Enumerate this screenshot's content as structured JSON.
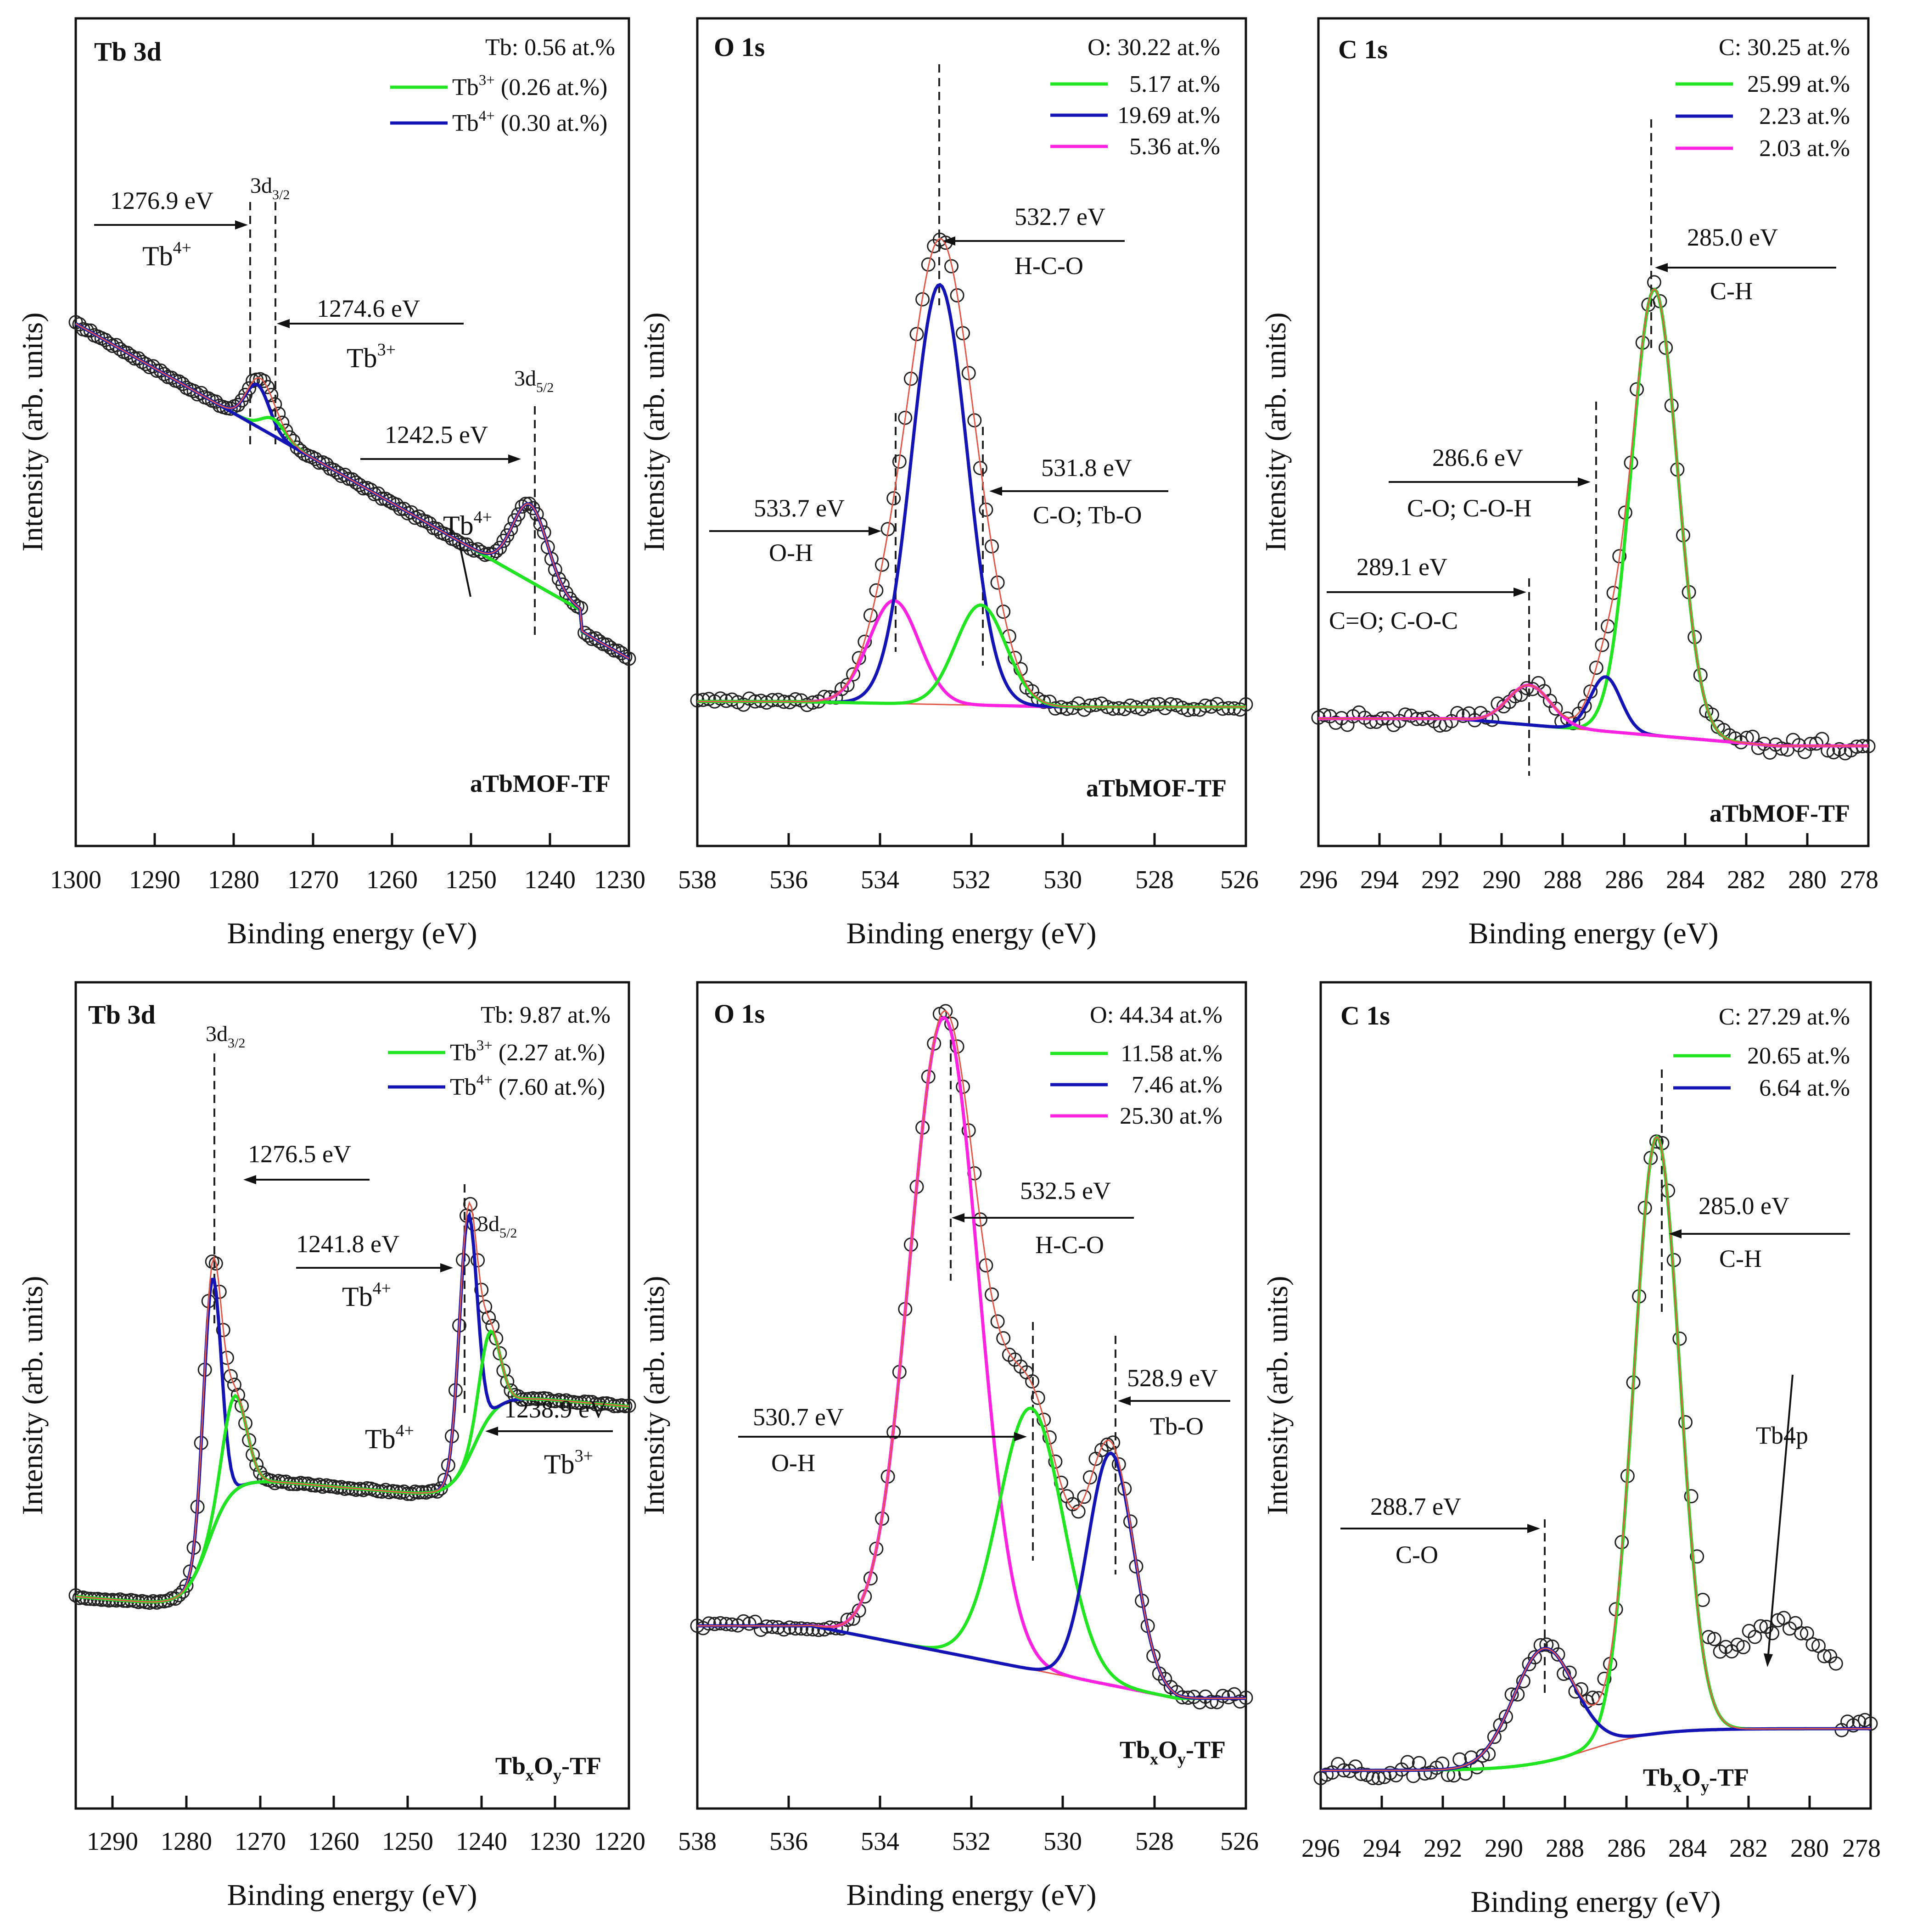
{
  "figure": {
    "colors": {
      "green": "#22e522",
      "blue": "#1414b4",
      "magenta": "#ff22e0",
      "navy": "#101060",
      "raw": "#222222",
      "envelope": "#e0584a"
    }
  },
  "chart_data": [
    {
      "type": "line",
      "panel": "top-left",
      "title": "Tb 3d",
      "sample": "aTbMOF-TF",
      "total": "Tb: 0.56 at.%",
      "xlabel": "Binding energy (eV)",
      "ylabel": "Intensity (arb. units)",
      "xlim": [
        1300,
        1230
      ],
      "xticks": [
        1300,
        1290,
        1280,
        1270,
        1260,
        1250,
        1240,
        1230
      ],
      "legend_position": "top-right",
      "legend": [
        {
          "label": "Tb3+ (0.26 at.%)",
          "base": "Tb",
          "sup": "3+",
          "rest": " (0.26 at.%)",
          "color": "#22e522"
        },
        {
          "label": "Tb4+ (0.30 at.%)",
          "base": "Tb",
          "sup": "4+",
          "rest": " (0.30 at.%)",
          "color": "#1414b4"
        }
      ],
      "annotations": [
        {
          "energy": "1276.9 eV",
          "species": "Tb4+",
          "base": "Tb",
          "sup": "4+"
        },
        {
          "energy": "1274.6 eV",
          "species": "Tb3+",
          "base": "Tb",
          "sup": "3+"
        },
        {
          "energy": "1242.5 eV",
          "species": "Tb4+",
          "base": "Tb",
          "sup": "4+"
        }
      ],
      "peak_labels": [
        {
          "label": "3d3/2",
          "base": "3d",
          "sub": "3/2",
          "x": 1277
        },
        {
          "label": "3d5/2",
          "base": "3d",
          "sub": "5/2",
          "x": 1242.5
        }
      ],
      "marker_lines": [
        1278,
        1275,
        1242.5
      ],
      "background": {
        "type": "linear",
        "x0": 1300,
        "y0": 3.0,
        "x1": 1236,
        "y1": 0.95
      },
      "peaks": [
        {
          "name": "Tb4+ 3d3/2",
          "center": 1277,
          "height": 0.3,
          "width": 1.5,
          "color": "#1414b4"
        },
        {
          "name": "Tb3+",
          "center": 1275,
          "height": 0.12,
          "width": 1.5,
          "color": "#22e522"
        },
        {
          "name": "Tb4+ 3d5/2",
          "center": 1242.5,
          "height": 0.55,
          "width": 2.2,
          "color": "#1414b4"
        }
      ]
    },
    {
      "type": "line",
      "panel": "top-middle",
      "title": "O 1s",
      "sample": "aTbMOF-TF",
      "total": "O: 30.22 at.%",
      "xlabel": "Binding energy (eV)",
      "ylabel": "Intensity (arb. units)",
      "xlim": [
        538,
        526
      ],
      "xticks": [
        538,
        536,
        534,
        532,
        530,
        528,
        526
      ],
      "legend_position": "top-right",
      "legend": [
        {
          "label": "5.17 at.%",
          "color": "#22e522"
        },
        {
          "label": "19.69 at.%",
          "color": "#1414b4"
        },
        {
          "label": "5.36 at.%",
          "color": "#ff22e0"
        }
      ],
      "annotations": [
        {
          "energy": "532.7 eV",
          "assignment": "H-C-O"
        },
        {
          "energy": "533.7 eV",
          "assignment": "O-H"
        },
        {
          "energy": "531.8 eV",
          "assignment": "C-O; Tb-O"
        }
      ],
      "marker_lines": [
        532.7,
        533.65,
        531.75
      ],
      "background": {
        "type": "linear",
        "x0": 536,
        "y0": 0.02,
        "x1": 530,
        "y1": 0.0
      },
      "peaks": [
        {
          "name": "O-H",
          "center": 533.7,
          "height": 0.38,
          "width": 0.55,
          "color": "#ff22e0"
        },
        {
          "name": "H-C-O",
          "center": 532.7,
          "height": 1.55,
          "width": 0.6,
          "color": "#1414b4"
        },
        {
          "name": "C-O; Tb-O",
          "center": 531.8,
          "height": 0.37,
          "width": 0.55,
          "color": "#22e522"
        }
      ]
    },
    {
      "type": "line",
      "panel": "top-right",
      "title": "C 1s",
      "sample": "aTbMOF-TF",
      "total": "C: 30.25 at.%",
      "xlabel": "Binding energy (eV)",
      "ylabel": "Intensity (arb. units)",
      "xlim": [
        296,
        278
      ],
      "xticks": [
        296,
        294,
        292,
        290,
        288,
        286,
        284,
        282,
        280,
        278
      ],
      "legend_position": "top-right",
      "legend": [
        {
          "label": "25.99 at.%",
          "color": "#22e522"
        },
        {
          "label": "2.23 at.%",
          "color": "#1414b4"
        },
        {
          "label": "2.03 at.%",
          "color": "#ff22e0"
        }
      ],
      "annotations": [
        {
          "energy": "285.0 eV",
          "assignment": "C-H"
        },
        {
          "energy": "286.6 eV",
          "assignment": "C-O; C-O-H"
        },
        {
          "energy": "289.1 eV",
          "assignment": "C=O; C-O-C"
        }
      ],
      "marker_lines": [
        285.1,
        286.9,
        289.1
      ],
      "background": {
        "type": "linear",
        "x0": 291.5,
        "y0": 0.11,
        "x1": 281,
        "y1": 0.0
      },
      "peaks": [
        {
          "name": "C-H",
          "center": 285.0,
          "height": 1.8,
          "width": 0.75,
          "color": "#22e522"
        },
        {
          "name": "C-O; C-O-H",
          "center": 286.6,
          "height": 0.22,
          "width": 0.5,
          "color": "#1414b4"
        },
        {
          "name": "C=O; C-O-C",
          "center": 289.1,
          "height": 0.16,
          "width": 0.7,
          "color": "#ff22e0"
        }
      ]
    },
    {
      "type": "line",
      "panel": "bottom-left",
      "title": "Tb 3d",
      "sample": "TbxOy-TF",
      "total": "Tb: 9.87 at.%",
      "xlabel": "Binding energy (eV)",
      "ylabel": "Intensity (arb. units)",
      "xlim": [
        1295,
        1220
      ],
      "xticks": [
        1290,
        1280,
        1270,
        1260,
        1250,
        1240,
        1230,
        1220
      ],
      "legend_position": "top-right",
      "legend": [
        {
          "label": "Tb3+ (2.27 at.%)",
          "base": "Tb",
          "sup": "3+",
          "rest": " (2.27 at.%)",
          "color": "#22e522"
        },
        {
          "label": "Tb4+ (7.60 at.%)",
          "base": "Tb",
          "sup": "4+",
          "rest": " (7.60 at.%)",
          "color": "#1414b4"
        }
      ],
      "annotations": [
        {
          "energy": "1276.5 eV"
        },
        {
          "energy": "1241.8 eV",
          "species": "Tb4+",
          "base": "Tb",
          "sup": "4+"
        },
        {
          "energy": "1238.9 eV",
          "species": "Tb3+",
          "base": "Tb",
          "sup": "3+"
        },
        {
          "species": "Tb4+",
          "base": "Tb",
          "sup": "4+"
        }
      ],
      "peak_labels": [
        {
          "label": "3d3/2",
          "base": "3d",
          "sub": "3/2",
          "x": 1276.5
        },
        {
          "label": "3d5/2",
          "base": "3d",
          "sub": "5/2",
          "x": 1241.8
        }
      ],
      "marker_lines": [
        1276.3,
        1241.8
      ],
      "background": {
        "type": "step",
        "levels": [
          2.4,
          1.0,
          0.0
        ],
        "steps": [
          1276,
          1242
        ]
      },
      "peaks": [
        {
          "name": "Tb4+ 3d3/2",
          "center": 1276.5,
          "height": 2.4,
          "width": 1.2,
          "color": "#1414b4"
        },
        {
          "name": "Tb3+ 3d3/2",
          "center": 1273.5,
          "height": 0.9,
          "width": 1.6,
          "color": "#22e522"
        },
        {
          "name": "Tb4+ 3d5/2",
          "center": 1241.8,
          "height": 2.3,
          "width": 1.2,
          "color": "#1414b4"
        },
        {
          "name": "Tb3+ 3d5/2",
          "center": 1238.9,
          "height": 0.8,
          "width": 1.4,
          "color": "#22e522"
        }
      ]
    },
    {
      "type": "line",
      "panel": "bottom-middle",
      "title": "O 1s",
      "sample": "TbxOy-TF",
      "total": "O: 44.34 at.%",
      "xlabel": "Binding energy (eV)",
      "ylabel": "Intensity (arb. units)",
      "xlim": [
        538,
        526
      ],
      "xticks": [
        538,
        536,
        534,
        532,
        530,
        528,
        526
      ],
      "legend_position": "top-right",
      "legend": [
        {
          "label": "11.58 at.%",
          "color": "#22e522"
        },
        {
          "label": "7.46 at.%",
          "color": "#1414b4"
        },
        {
          "label": "25.30 at.%",
          "color": "#ff22e0"
        }
      ],
      "annotations": [
        {
          "energy": "532.5 eV",
          "assignment": "H-C-O"
        },
        {
          "energy": "530.7 eV",
          "assignment": "O-H"
        },
        {
          "energy": "528.9 eV",
          "assignment": "Tb-O"
        }
      ],
      "marker_lines": [
        532.5,
        530.65,
        528.9
      ],
      "background": {
        "type": "linear",
        "x0": 535.5,
        "y0": 0.2,
        "x1": 527.5,
        "y1": 0.0
      },
      "peaks": [
        {
          "name": "H-C-O",
          "center": 532.6,
          "height": 1.75,
          "width": 0.75,
          "color": "#ff22e0"
        },
        {
          "name": "O-H",
          "center": 530.7,
          "height": 0.72,
          "width": 0.7,
          "color": "#22e522"
        },
        {
          "name": "Tb-O",
          "center": 528.95,
          "height": 0.64,
          "width": 0.5,
          "color": "#1414b4"
        }
      ]
    },
    {
      "type": "line",
      "panel": "bottom-right",
      "title": "C 1s",
      "sample": "TbxOy-TF",
      "total": "C: 27.29 at.%",
      "xlabel": "Binding energy (eV)",
      "ylabel": "Intensity (arb. units)",
      "xlim": [
        296,
        278
      ],
      "xticks": [
        296,
        294,
        292,
        290,
        288,
        286,
        284,
        282,
        280,
        278
      ],
      "legend_position": "top-right",
      "legend": [
        {
          "label": "20.65 at.%",
          "color": "#22e522"
        },
        {
          "label": "6.64 at.%",
          "color": "#1414b4"
        }
      ],
      "annotations": [
        {
          "energy": "285.0 eV",
          "assignment": "C-H"
        },
        {
          "energy": "288.7 eV",
          "assignment": "C-O"
        },
        {
          "species": "Tb4p"
        }
      ],
      "marker_lines": [
        285.0,
        288.6
      ],
      "background": {
        "type": "curve"
      },
      "peaks": [
        {
          "name": "C-H",
          "center": 285.0,
          "height": 2.0,
          "width": 0.75,
          "color": "#22e522"
        },
        {
          "name": "C-O",
          "center": 288.7,
          "height": 0.38,
          "width": 1.0,
          "color": "#1414b4"
        }
      ]
    }
  ]
}
